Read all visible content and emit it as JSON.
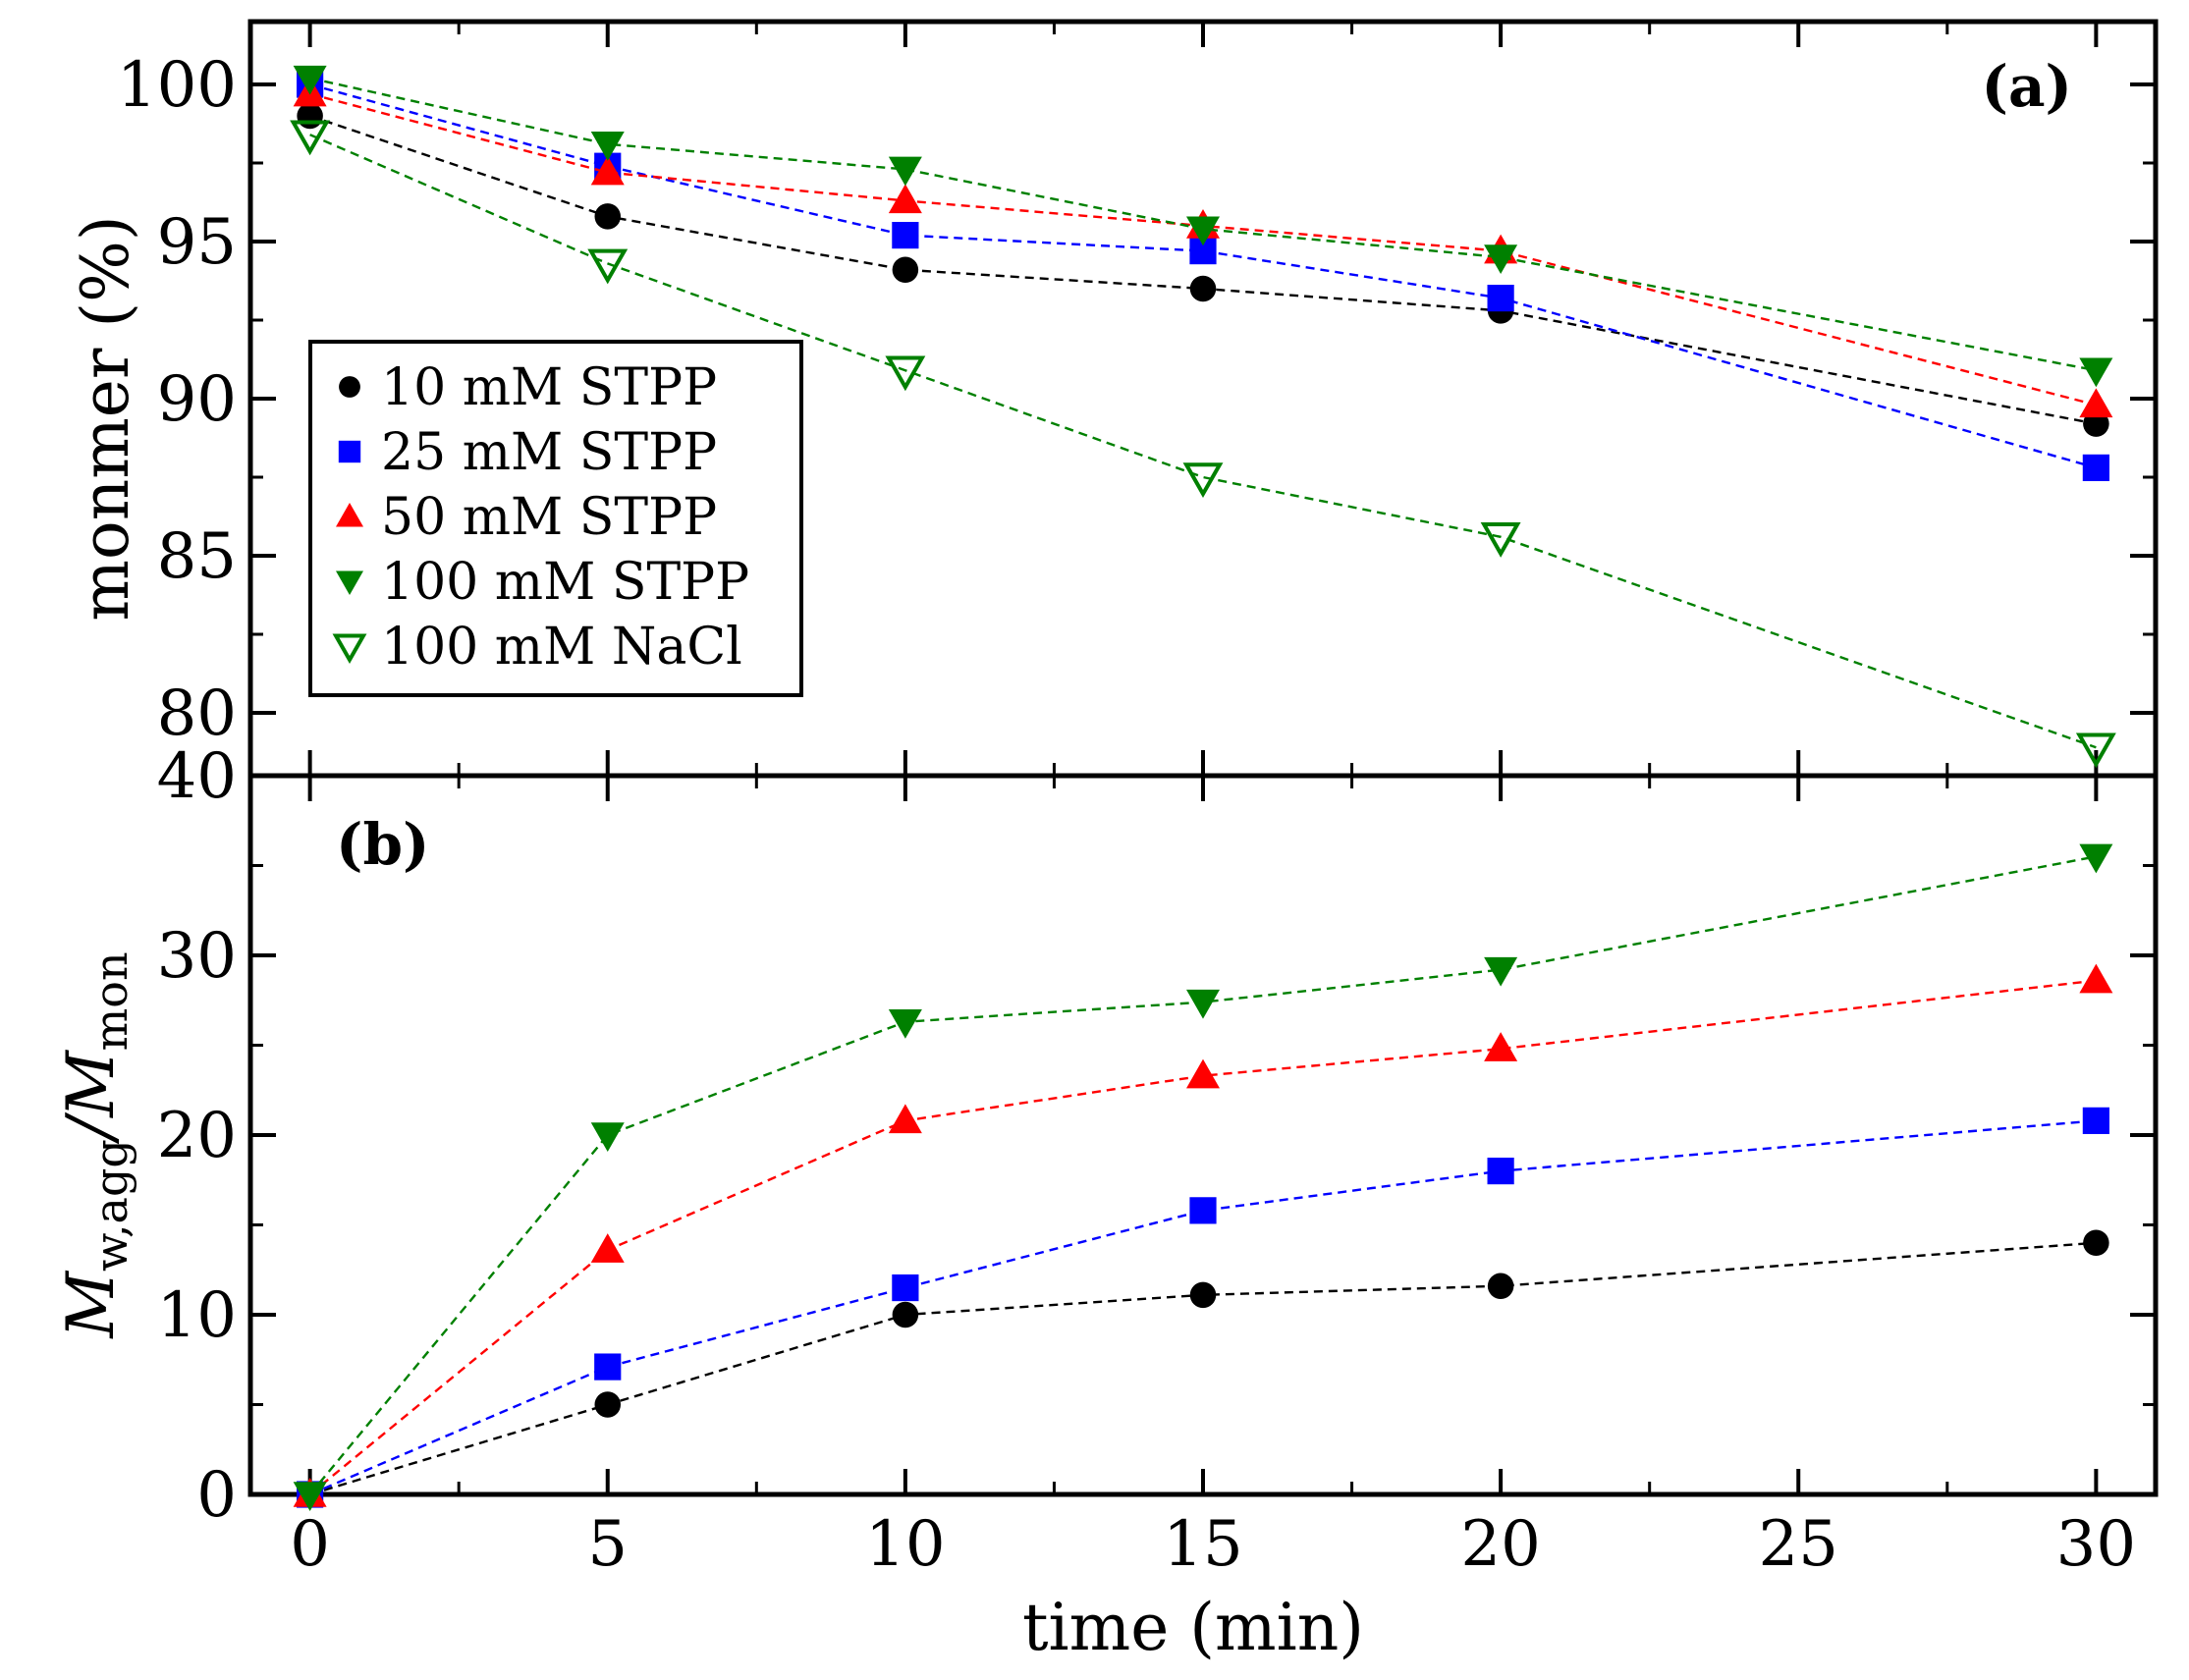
{
  "chart_data": [
    {
      "panel": "(a)",
      "type": "line",
      "ylabel": "monmer (%)",
      "ylim": [
        78,
        102
      ],
      "yticks": [
        "100",
        "95",
        "90",
        "85",
        "80"
      ],
      "x": [
        0,
        5,
        10,
        15,
        20,
        30
      ],
      "legend": {
        "placement": "left-center"
      },
      "series": [
        {
          "name": "10 mM STPP",
          "color": "#000000",
          "marker": "circle",
          "values": [
            99.0,
            95.8,
            94.1,
            93.5,
            92.8,
            89.2
          ]
        },
        {
          "name": "25 mM STPP",
          "color": "#0000ff",
          "marker": "square",
          "values": [
            100.0,
            97.4,
            95.2,
            94.7,
            93.2,
            87.8
          ]
        },
        {
          "name": "50 mM STPP",
          "color": "#ff0000",
          "marker": "triangle-up",
          "values": [
            99.7,
            97.2,
            96.3,
            95.5,
            94.7,
            89.8
          ]
        },
        {
          "name": "100 mM STPP",
          "color": "#008000",
          "marker": "triangle-down",
          "values": [
            100.2,
            98.1,
            97.3,
            95.4,
            94.5,
            90.9
          ]
        },
        {
          "name": "100 mM NaCl",
          "color": "#008000",
          "marker": "triangle-down-open",
          "values": [
            98.4,
            94.3,
            90.9,
            87.5,
            85.6,
            78.9
          ]
        }
      ]
    },
    {
      "panel": "(b)",
      "type": "line",
      "ylabel_main": "M",
      "ylabel_sub1": "w,agg",
      "ylabel_mid": "/M",
      "ylabel_sub2": "mon",
      "ylim": [
        0,
        40
      ],
      "yticks": [
        "40",
        "30",
        "20",
        "10",
        "0"
      ],
      "xlabel": "time (min)",
      "xlim": [
        -1,
        31
      ],
      "xticks": [
        "0",
        "5",
        "10",
        "15",
        "20",
        "25",
        "30"
      ],
      "x": [
        0,
        5,
        10,
        15,
        20,
        30
      ],
      "series": [
        {
          "name": "10 mM STPP",
          "color": "#000000",
          "marker": "circle",
          "values": [
            0,
            5.0,
            10.0,
            11.1,
            11.6,
            14.0
          ]
        },
        {
          "name": "25 mM STPP",
          "color": "#0000ff",
          "marker": "square",
          "values": [
            0,
            7.1,
            11.5,
            15.8,
            18.0,
            20.8
          ]
        },
        {
          "name": "50 mM STPP",
          "color": "#ff0000",
          "marker": "triangle-up",
          "values": [
            0,
            13.6,
            20.8,
            23.3,
            24.8,
            28.6
          ]
        },
        {
          "name": "100 mM STPP",
          "color": "#008000",
          "marker": "triangle-down",
          "values": [
            0,
            20.0,
            26.3,
            27.4,
            29.2,
            35.5
          ]
        }
      ]
    }
  ]
}
